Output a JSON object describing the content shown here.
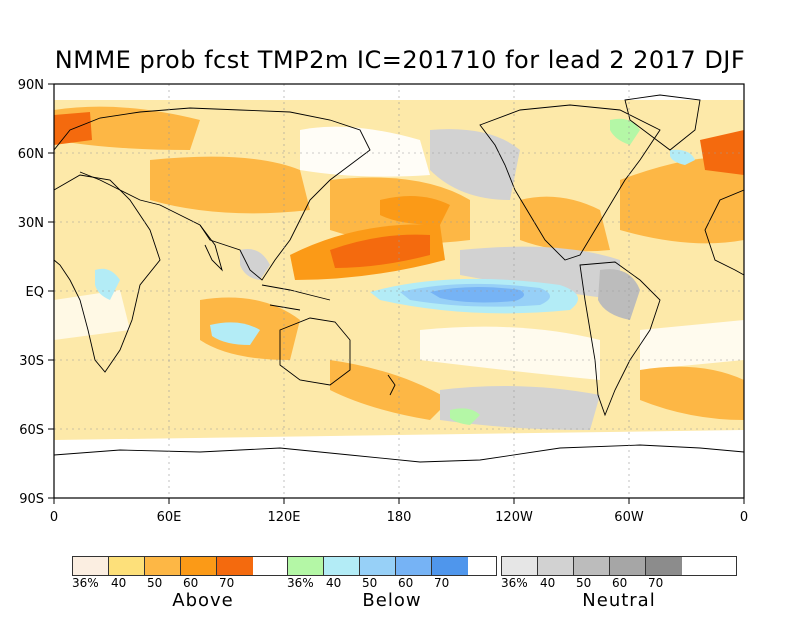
{
  "title": "NMME prob fcst TMP2m IC=201710 for lead 2 2017 DJF",
  "axes": {
    "lat_labels": [
      "90N",
      "60N",
      "30N",
      "EQ",
      "30S",
      "60S",
      "90S"
    ],
    "lon_labels": [
      "0",
      "60E",
      "120E",
      "180",
      "120W",
      "60W",
      "0"
    ]
  },
  "legends": [
    {
      "caption": "Above",
      "ticks": [
        "36%",
        "40",
        "50",
        "60",
        "70"
      ],
      "colors": [
        "#fbeee1",
        "#fde07a",
        "#fdb745",
        "#fb9a17",
        "#f46a0e"
      ]
    },
    {
      "caption": "Below",
      "ticks": [
        "36%",
        "40",
        "50",
        "60",
        "70"
      ],
      "colors": [
        "#b4f7a6",
        "#b3ecf6",
        "#97d0f7",
        "#76b3f5",
        "#4f96ec"
      ]
    },
    {
      "caption": "Neutral",
      "ticks": [
        "36%",
        "40",
        "50",
        "60",
        "70"
      ],
      "colors": [
        "#e6e6e6",
        "#d2d2d2",
        "#bcbcbc",
        "#a6a6a6",
        "#8c8c8c"
      ]
    }
  ]
}
